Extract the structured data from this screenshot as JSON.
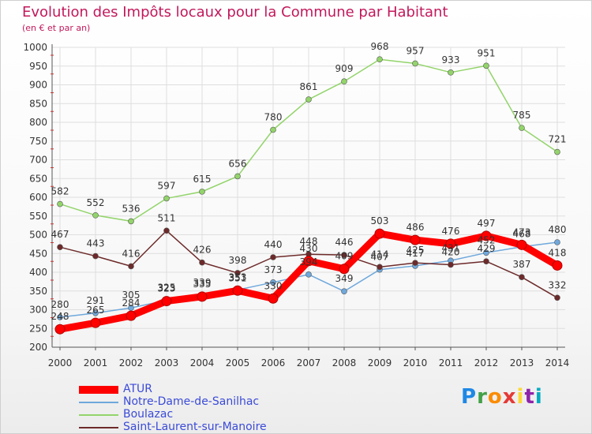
{
  "title": "Evolution des Impôts locaux pour la Commune par Habitant",
  "subtitle": "(en € et par an)",
  "brand": {
    "text": "Proxiti",
    "colors": [
      "#1e88e5",
      "#43a047",
      "#fb8c00",
      "#e53935",
      "#fdd835",
      "#8e24aa",
      "#00acc1"
    ]
  },
  "chart_data": {
    "type": "line",
    "title": "Evolution des Impôts locaux pour la Commune par Habitant",
    "subtitle": "(en € et par an)",
    "xlabel": "",
    "ylabel": "",
    "x": [
      "2000",
      "2001",
      "2002",
      "2003",
      "2004",
      "2005",
      "2006",
      "2007",
      "2008",
      "2009",
      "2010",
      "2011",
      "2012",
      "2013",
      "2014"
    ],
    "ylim": [
      200,
      1000
    ],
    "yticks": [
      200,
      250,
      300,
      350,
      400,
      450,
      500,
      550,
      600,
      650,
      700,
      750,
      800,
      850,
      900,
      950,
      1000
    ],
    "grid": true,
    "legend_position": "bottom-left",
    "series": [
      {
        "name": "ATUR",
        "color": "#ff0000",
        "values": [
          248,
          265,
          284,
          323,
          335,
          351,
          330,
          430,
          409,
          503,
          486,
          476,
          497,
          473,
          418
        ],
        "labels": [
          "248",
          "265",
          "284",
          "323",
          "335",
          "351",
          "330",
          "430",
          "409",
          "503",
          "486",
          "476",
          "497",
          "473",
          "418"
        ],
        "emphasis": true
      },
      {
        "name": "Notre-Dame-de-Sanilhac",
        "color": "#6fa8dc",
        "values": [
          280,
          291,
          305,
          325,
          339,
          353,
          373,
          394,
          349,
          407,
          417,
          431,
          452,
          468,
          480
        ],
        "labels": [
          "280",
          "291",
          "305",
          "325",
          "339",
          "353",
          "373",
          "394",
          "349",
          "407",
          "417",
          "431",
          "452",
          "468",
          "480"
        ]
      },
      {
        "name": "Boulazac",
        "color": "#93d46b",
        "values": [
          582,
          552,
          536,
          597,
          615,
          656,
          780,
          861,
          909,
          968,
          957,
          933,
          951,
          785,
          721
        ],
        "labels": [
          "582",
          "552",
          "536",
          "597",
          "615",
          "656",
          "780",
          "861",
          "909",
          "968",
          "957",
          "933",
          "951",
          "785",
          "721"
        ]
      },
      {
        "name": "Saint-Laurent-sur-Manoire",
        "color": "#6d2a2a",
        "values": [
          467,
          443,
          416,
          511,
          426,
          398,
          440,
          448,
          446,
          414,
          425,
          420,
          429,
          387,
          332
        ],
        "labels": [
          "467",
          "443",
          "416",
          "511",
          "426",
          "398",
          "440",
          "448",
          "446",
          "414",
          "425",
          "420",
          "429",
          "387",
          "332"
        ]
      }
    ]
  }
}
